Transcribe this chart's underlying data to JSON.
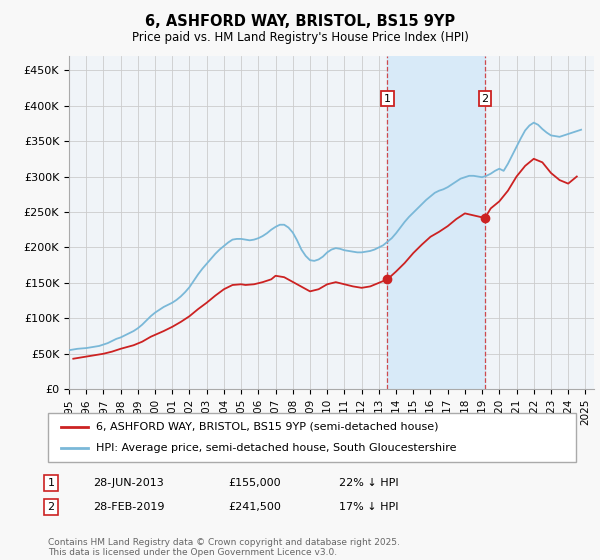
{
  "title": "6, ASHFORD WAY, BRISTOL, BS15 9YP",
  "subtitle": "Price paid vs. HM Land Registry's House Price Index (HPI)",
  "ylim": [
    0,
    470000
  ],
  "yticks": [
    0,
    50000,
    100000,
    150000,
    200000,
    250000,
    300000,
    350000,
    400000,
    450000
  ],
  "ytick_labels": [
    "£0",
    "£50K",
    "£100K",
    "£150K",
    "£200K",
    "£250K",
    "£300K",
    "£350K",
    "£400K",
    "£450K"
  ],
  "background_color": "#f8f8f8",
  "plot_bg_color": "#f0f4f8",
  "grid_color": "#cccccc",
  "hpi_color": "#7ab8d8",
  "price_color": "#cc2222",
  "vline_color": "#cc2222",
  "shade_color": "#d8eaf8",
  "sale1_year": 2013.5,
  "sale1_price": 155000,
  "sale2_year": 2019.16,
  "sale2_price": 241500,
  "legend_line1": "6, ASHFORD WAY, BRISTOL, BS15 9YP (semi-detached house)",
  "legend_line2": "HPI: Average price, semi-detached house, South Gloucestershire",
  "annotation1_num": "1",
  "annotation1_date": "28-JUN-2013",
  "annotation1_price": "£155,000",
  "annotation1_hpi": "22% ↓ HPI",
  "annotation2_num": "2",
  "annotation2_date": "28-FEB-2019",
  "annotation2_price": "£241,500",
  "annotation2_hpi": "17% ↓ HPI",
  "footer": "Contains HM Land Registry data © Crown copyright and database right 2025.\nThis data is licensed under the Open Government Licence v3.0.",
  "hpi_x": [
    1995.0,
    1995.25,
    1995.5,
    1995.75,
    1996.0,
    1996.25,
    1996.5,
    1996.75,
    1997.0,
    1997.25,
    1997.5,
    1997.75,
    1998.0,
    1998.25,
    1998.5,
    1998.75,
    1999.0,
    1999.25,
    1999.5,
    1999.75,
    2000.0,
    2000.25,
    2000.5,
    2000.75,
    2001.0,
    2001.25,
    2001.5,
    2001.75,
    2002.0,
    2002.25,
    2002.5,
    2002.75,
    2003.0,
    2003.25,
    2003.5,
    2003.75,
    2004.0,
    2004.25,
    2004.5,
    2004.75,
    2005.0,
    2005.25,
    2005.5,
    2005.75,
    2006.0,
    2006.25,
    2006.5,
    2006.75,
    2007.0,
    2007.25,
    2007.5,
    2007.75,
    2008.0,
    2008.25,
    2008.5,
    2008.75,
    2009.0,
    2009.25,
    2009.5,
    2009.75,
    2010.0,
    2010.25,
    2010.5,
    2010.75,
    2011.0,
    2011.25,
    2011.5,
    2011.75,
    2012.0,
    2012.25,
    2012.5,
    2012.75,
    2013.0,
    2013.25,
    2013.5,
    2013.75,
    2014.0,
    2014.25,
    2014.5,
    2014.75,
    2015.0,
    2015.25,
    2015.5,
    2015.75,
    2016.0,
    2016.25,
    2016.5,
    2016.75,
    2017.0,
    2017.25,
    2017.5,
    2017.75,
    2018.0,
    2018.25,
    2018.5,
    2018.75,
    2019.0,
    2019.25,
    2019.5,
    2019.75,
    2020.0,
    2020.25,
    2020.5,
    2020.75,
    2021.0,
    2021.25,
    2021.5,
    2021.75,
    2022.0,
    2022.25,
    2022.5,
    2022.75,
    2023.0,
    2023.25,
    2023.5,
    2023.75,
    2024.0,
    2024.25,
    2024.5,
    2024.75
  ],
  "hpi_y": [
    55000,
    56000,
    57000,
    57500,
    58000,
    59000,
    60000,
    61000,
    63000,
    65000,
    68000,
    71000,
    73000,
    76000,
    79000,
    82000,
    86000,
    91000,
    97000,
    103000,
    108000,
    112000,
    116000,
    119000,
    122000,
    126000,
    131000,
    137000,
    144000,
    153000,
    162000,
    170000,
    177000,
    184000,
    191000,
    197000,
    202000,
    207000,
    211000,
    212000,
    212000,
    211000,
    210000,
    211000,
    213000,
    216000,
    220000,
    225000,
    229000,
    232000,
    232000,
    228000,
    221000,
    210000,
    197000,
    188000,
    182000,
    181000,
    183000,
    187000,
    193000,
    197000,
    199000,
    198000,
    196000,
    195000,
    194000,
    193000,
    193000,
    194000,
    195000,
    197000,
    200000,
    203000,
    208000,
    213000,
    220000,
    228000,
    236000,
    243000,
    249000,
    255000,
    261000,
    267000,
    272000,
    277000,
    280000,
    282000,
    285000,
    289000,
    293000,
    297000,
    299000,
    301000,
    301000,
    300000,
    299000,
    301000,
    304000,
    308000,
    311000,
    308000,
    318000,
    330000,
    342000,
    354000,
    365000,
    372000,
    376000,
    373000,
    367000,
    362000,
    358000,
    357000,
    356000,
    358000,
    360000,
    362000,
    364000,
    366000
  ],
  "price_x": [
    1995.25,
    1996.0,
    1997.0,
    1997.5,
    1998.0,
    1998.75,
    1999.25,
    1999.75,
    2000.5,
    2001.0,
    2001.5,
    2002.0,
    2002.5,
    2003.0,
    2003.5,
    2004.0,
    2004.5,
    2005.0,
    2005.25,
    2005.75,
    2006.25,
    2006.75,
    2007.0,
    2007.5,
    2008.25,
    2009.0,
    2009.5,
    2010.0,
    2010.5,
    2011.0,
    2011.5,
    2012.0,
    2012.5,
    2013.5,
    2014.0,
    2014.5,
    2015.0,
    2015.5,
    2016.0,
    2016.5,
    2017.0,
    2017.5,
    2018.0,
    2019.16,
    2019.5,
    2020.0,
    2020.5,
    2021.0,
    2021.5,
    2022.0,
    2022.5,
    2023.0,
    2023.5,
    2024.0,
    2024.5
  ],
  "price_y": [
    43000,
    46000,
    50000,
    53000,
    57000,
    62000,
    67000,
    74000,
    82000,
    88000,
    95000,
    103000,
    113000,
    122000,
    132000,
    141000,
    147000,
    148000,
    147000,
    148000,
    151000,
    155000,
    160000,
    158000,
    148000,
    138000,
    141000,
    148000,
    151000,
    148000,
    145000,
    143000,
    145000,
    155000,
    166000,
    178000,
    192000,
    204000,
    215000,
    222000,
    230000,
    240000,
    248000,
    241500,
    255000,
    265000,
    280000,
    300000,
    315000,
    325000,
    320000,
    305000,
    295000,
    290000,
    300000
  ]
}
